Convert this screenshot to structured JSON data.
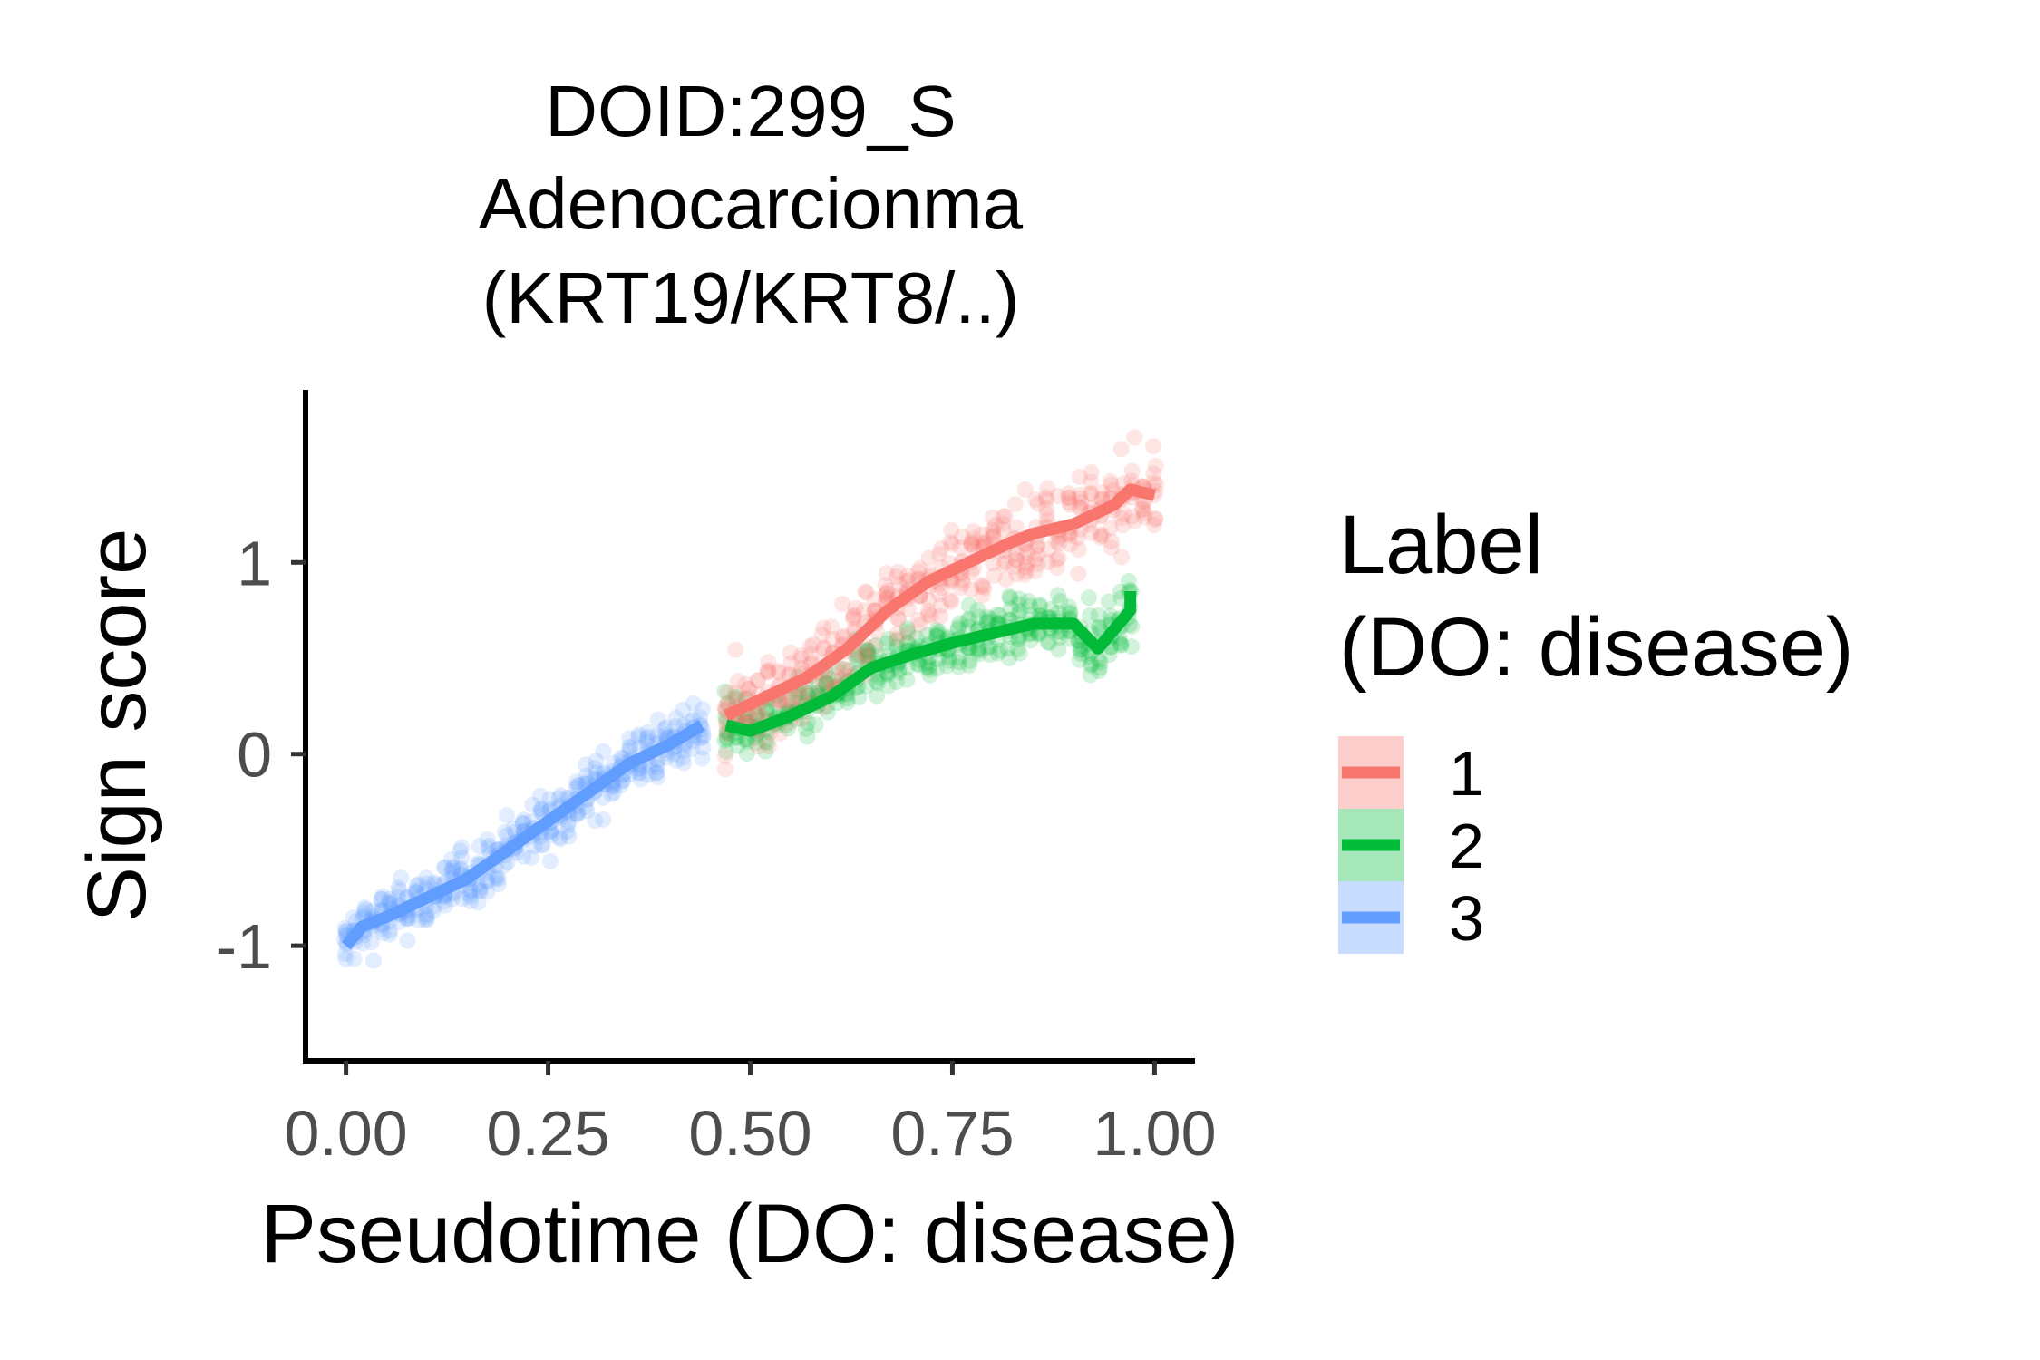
{
  "chart_data": {
    "type": "scatter",
    "title": [
      "DOID:299_S",
      "Adenocarcionma",
      "(KRT19/KRT8/..)"
    ],
    "xlabel": "Pseudotime (DO: disease)",
    "ylabel": "Sign score",
    "xlim": [
      -0.05,
      1.05
    ],
    "ylim": [
      -1.6,
      1.9
    ],
    "x_ticks": [
      0.0,
      0.25,
      0.5,
      0.75,
      1.0
    ],
    "x_tick_labels": [
      "0.00",
      "0.25",
      "0.50",
      "0.75",
      "1.00"
    ],
    "y_ticks": [
      1,
      0,
      -1
    ],
    "y_tick_labels": [
      "1",
      "0",
      "-1"
    ],
    "grid": false,
    "legend": {
      "title": [
        "Label",
        "(DO: disease)"
      ],
      "position": "right",
      "entries": [
        "1",
        "2",
        "3"
      ]
    },
    "series": [
      {
        "name": "1",
        "color": "#f8766d",
        "point_range": {
          "x": [
            0.47,
            1.0
          ],
          "spread": 0.45
        },
        "trend_x": [
          0.47,
          0.52,
          0.57,
          0.62,
          0.67,
          0.72,
          0.77,
          0.82,
          0.85,
          0.9,
          0.95,
          0.97,
          1.0
        ],
        "trend_y": [
          0.2,
          0.3,
          0.4,
          0.55,
          0.75,
          0.9,
          1.0,
          1.1,
          1.15,
          1.2,
          1.3,
          1.38,
          1.35
        ]
      },
      {
        "name": "2",
        "color": "#00ba38",
        "point_range": {
          "x": [
            0.47,
            0.97
          ],
          "spread": 0.3
        },
        "trend_x": [
          0.47,
          0.5,
          0.55,
          0.6,
          0.65,
          0.7,
          0.75,
          0.8,
          0.85,
          0.9,
          0.93,
          0.97,
          0.97
        ],
        "trend_y": [
          0.15,
          0.12,
          0.2,
          0.3,
          0.45,
          0.52,
          0.58,
          0.63,
          0.68,
          0.68,
          0.55,
          0.75,
          0.85
        ]
      },
      {
        "name": "3",
        "color": "#619cff",
        "point_range": {
          "x": [
            0.0,
            0.44
          ],
          "spread": 0.3
        },
        "trend_x": [
          0.0,
          0.02,
          0.05,
          0.1,
          0.15,
          0.2,
          0.25,
          0.3,
          0.35,
          0.4,
          0.44
        ],
        "trend_y": [
          -1.0,
          -0.9,
          -0.85,
          -0.75,
          -0.65,
          -0.5,
          -0.35,
          -0.2,
          -0.05,
          0.05,
          0.15
        ]
      }
    ]
  }
}
